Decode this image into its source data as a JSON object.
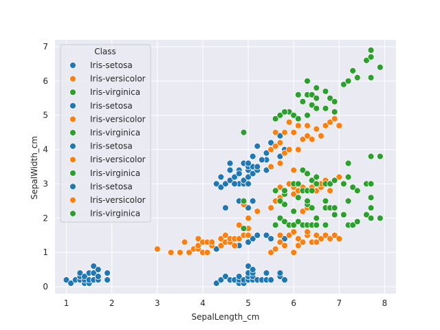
{
  "chart_data": {
    "type": "scatter",
    "xlabel": "SepalLength_cm",
    "ylabel": "SepalWidth_cm",
    "xlim": [
      0.75,
      8.25
    ],
    "ylim": [
      -0.2,
      7.2
    ],
    "xticks": [
      "1",
      "2",
      "3",
      "4",
      "5",
      "6",
      "7",
      "8"
    ],
    "yticks": [
      "0",
      "1",
      "2",
      "3",
      "4",
      "5",
      "6",
      "7"
    ],
    "grid": true,
    "legend": {
      "title": "Class",
      "placement": "top-left",
      "entries": [
        {
          "label": "Iris-setosa",
          "color": "#1f77b4"
        },
        {
          "label": "Iris-versicolor",
          "color": "#ff7f0e"
        },
        {
          "label": "Iris-virginica",
          "color": "#2ca02c"
        },
        {
          "label": "Iris-setosa",
          "color": "#1f77b4"
        },
        {
          "label": "Iris-versicolor",
          "color": "#ff7f0e"
        },
        {
          "label": "Iris-virginica",
          "color": "#2ca02c"
        },
        {
          "label": "Iris-setosa",
          "color": "#1f77b4"
        },
        {
          "label": "Iris-versicolor",
          "color": "#ff7f0e"
        },
        {
          "label": "Iris-virginica",
          "color": "#2ca02c"
        },
        {
          "label": "Iris-setosa",
          "color": "#1f77b4"
        },
        {
          "label": "Iris-versicolor",
          "color": "#ff7f0e"
        },
        {
          "label": "Iris-virginica",
          "color": "#2ca02c"
        }
      ]
    },
    "series": [
      {
        "class": "Iris-setosa",
        "color": "#1f77b4",
        "points": [
          [
            1.0,
            0.2
          ],
          [
            1.1,
            0.1
          ],
          [
            1.2,
            0.2
          ],
          [
            1.3,
            0.2
          ],
          [
            1.3,
            0.3
          ],
          [
            1.3,
            0.4
          ],
          [
            1.4,
            0.1
          ],
          [
            1.4,
            0.2
          ],
          [
            1.4,
            0.3
          ],
          [
            1.5,
            0.1
          ],
          [
            1.5,
            0.2
          ],
          [
            1.5,
            0.4
          ],
          [
            1.6,
            0.2
          ],
          [
            1.6,
            0.4
          ],
          [
            1.6,
            0.6
          ],
          [
            1.7,
            0.2
          ],
          [
            1.7,
            0.3
          ],
          [
            1.7,
            0.5
          ],
          [
            1.9,
            0.2
          ],
          [
            1.9,
            0.4
          ],
          [
            4.3,
            0.1
          ],
          [
            4.4,
            0.2
          ],
          [
            4.5,
            0.3
          ],
          [
            4.6,
            0.2
          ],
          [
            4.7,
            0.2
          ],
          [
            4.8,
            0.1
          ],
          [
            4.8,
            0.2
          ],
          [
            4.8,
            0.3
          ],
          [
            4.9,
            0.1
          ],
          [
            4.9,
            0.2
          ],
          [
            5.0,
            0.2
          ],
          [
            5.0,
            0.3
          ],
          [
            5.0,
            0.4
          ],
          [
            5.0,
            0.6
          ],
          [
            5.1,
            0.2
          ],
          [
            5.1,
            0.3
          ],
          [
            5.1,
            0.4
          ],
          [
            5.1,
            0.5
          ],
          [
            5.2,
            0.2
          ],
          [
            5.3,
            0.2
          ],
          [
            5.4,
            0.2
          ],
          [
            5.4,
            0.4
          ],
          [
            5.5,
            0.2
          ],
          [
            5.7,
            0.3
          ],
          [
            5.7,
            0.4
          ],
          [
            5.8,
            0.2
          ],
          [
            4.3,
            1.1
          ],
          [
            4.8,
            1.2
          ],
          [
            5.0,
            1.3
          ],
          [
            5.1,
            1.4
          ],
          [
            5.2,
            1.5
          ],
          [
            5.4,
            1.5
          ],
          [
            5.5,
            1.4
          ],
          [
            5.7,
            1.5
          ],
          [
            5.8,
            1.4
          ],
          [
            4.5,
            2.3
          ],
          [
            4.8,
            2.5
          ],
          [
            5.0,
            2.3
          ],
          [
            5.1,
            2.5
          ],
          [
            4.3,
            3.0
          ],
          [
            4.4,
            2.9
          ],
          [
            4.4,
            3.2
          ],
          [
            4.5,
            3.0
          ],
          [
            4.6,
            3.1
          ],
          [
            4.6,
            3.4
          ],
          [
            4.7,
            3.2
          ],
          [
            4.8,
            3.0
          ],
          [
            4.8,
            3.4
          ],
          [
            4.9,
            3.0
          ],
          [
            4.9,
            3.1
          ],
          [
            5.0,
            3.0
          ],
          [
            5.0,
            3.2
          ],
          [
            5.0,
            3.4
          ],
          [
            5.0,
            3.5
          ],
          [
            5.1,
            3.3
          ],
          [
            5.1,
            3.5
          ],
          [
            5.1,
            3.8
          ],
          [
            5.2,
            3.4
          ],
          [
            5.2,
            3.5
          ],
          [
            5.3,
            3.7
          ],
          [
            5.4,
            3.4
          ],
          [
            5.4,
            3.7
          ],
          [
            5.4,
            3.9
          ],
          [
            5.5,
            4.2
          ],
          [
            5.7,
            3.8
          ],
          [
            5.7,
            4.4
          ],
          [
            5.8,
            4.0
          ],
          [
            4.6,
            3.6
          ],
          [
            4.7,
            3.0
          ],
          [
            4.8,
            3.3
          ],
          [
            4.9,
            3.6
          ],
          [
            5.0,
            3.6
          ],
          [
            5.2,
            4.1
          ],
          [
            5.3,
            3.7
          ],
          [
            5.5,
            3.5
          ],
          [
            5.7,
            4.4
          ],
          [
            5.8,
            4.0
          ]
        ]
      },
      {
        "class": "Iris-versicolor",
        "color": "#ff7f0e",
        "points": [
          [
            3.0,
            1.1
          ],
          [
            3.3,
            1.0
          ],
          [
            3.5,
            1.0
          ],
          [
            3.6,
            1.3
          ],
          [
            3.7,
            1.0
          ],
          [
            3.8,
            1.1
          ],
          [
            3.9,
            1.1
          ],
          [
            3.9,
            1.2
          ],
          [
            3.9,
            1.4
          ],
          [
            4.0,
            1.0
          ],
          [
            4.0,
            1.3
          ],
          [
            4.1,
            1.0
          ],
          [
            4.1,
            1.3
          ],
          [
            4.2,
            1.2
          ],
          [
            4.2,
            1.3
          ],
          [
            4.4,
            1.2
          ],
          [
            4.4,
            1.4
          ],
          [
            4.5,
            1.3
          ],
          [
            4.5,
            1.5
          ],
          [
            4.6,
            1.3
          ],
          [
            4.6,
            1.4
          ],
          [
            4.7,
            1.2
          ],
          [
            4.7,
            1.4
          ],
          [
            4.8,
            1.4
          ],
          [
            4.8,
            1.8
          ],
          [
            4.9,
            1.5
          ],
          [
            5.0,
            1.5
          ],
          [
            5.0,
            1.7
          ],
          [
            4.9,
            2.4
          ],
          [
            5.0,
            2.0
          ],
          [
            5.2,
            2.2
          ],
          [
            5.5,
            2.3
          ],
          [
            5.6,
            2.5
          ],
          [
            5.6,
            2.8
          ],
          [
            5.7,
            2.6
          ],
          [
            5.7,
            2.9
          ],
          [
            5.8,
            2.7
          ],
          [
            5.9,
            3.0
          ],
          [
            6.0,
            2.2
          ],
          [
            6.0,
            2.7
          ],
          [
            6.0,
            2.9
          ],
          [
            6.0,
            3.4
          ],
          [
            6.1,
            2.8
          ],
          [
            6.1,
            3.0
          ],
          [
            6.2,
            2.2
          ],
          [
            6.2,
            2.9
          ],
          [
            6.3,
            2.3
          ],
          [
            6.3,
            2.5
          ],
          [
            6.3,
            3.3
          ],
          [
            6.4,
            2.9
          ],
          [
            6.5,
            2.8
          ],
          [
            6.6,
            2.9
          ],
          [
            6.6,
            3.0
          ],
          [
            6.7,
            3.0
          ],
          [
            6.7,
            3.1
          ],
          [
            6.8,
            2.8
          ],
          [
            6.9,
            3.1
          ],
          [
            7.0,
            3.2
          ],
          [
            5.5,
            3.5
          ],
          [
            5.5,
            4.0
          ],
          [
            5.6,
            4.1
          ],
          [
            5.6,
            4.5
          ],
          [
            5.7,
            3.6
          ],
          [
            5.7,
            4.2
          ],
          [
            5.8,
            3.9
          ],
          [
            5.8,
            4.5
          ],
          [
            5.9,
            4.0
          ],
          [
            5.9,
            4.8
          ],
          [
            6.0,
            4.5
          ],
          [
            6.1,
            4.0
          ],
          [
            6.1,
            4.7
          ],
          [
            6.2,
            4.3
          ],
          [
            6.3,
            4.4
          ],
          [
            6.3,
            4.7
          ],
          [
            6.4,
            4.3
          ],
          [
            6.5,
            4.6
          ],
          [
            6.6,
            4.4
          ],
          [
            6.7,
            4.7
          ],
          [
            6.8,
            4.8
          ],
          [
            6.9,
            4.9
          ],
          [
            7.0,
            4.7
          ],
          [
            5.5,
            1.0
          ],
          [
            5.6,
            1.1
          ],
          [
            5.7,
            1.3
          ],
          [
            5.8,
            1.2
          ],
          [
            5.9,
            1.5
          ],
          [
            6.0,
            1.0
          ],
          [
            6.0,
            1.6
          ],
          [
            6.1,
            1.2
          ],
          [
            6.2,
            1.3
          ],
          [
            6.3,
            1.5
          ],
          [
            6.4,
            1.3
          ],
          [
            6.5,
            1.5
          ],
          [
            6.6,
            1.4
          ],
          [
            6.7,
            1.5
          ],
          [
            6.8,
            1.4
          ],
          [
            6.9,
            1.5
          ],
          [
            7.0,
            1.4
          ],
          [
            5.7,
            1.5
          ],
          [
            6.1,
            1.4
          ],
          [
            6.3,
            1.6
          ],
          [
            6.5,
            1.3
          ]
        ]
      },
      {
        "class": "Iris-virginica",
        "color": "#2ca02c",
        "points": [
          [
            4.9,
            1.7
          ],
          [
            5.6,
            1.8
          ],
          [
            5.7,
            2.0
          ],
          [
            5.8,
            1.9
          ],
          [
            5.8,
            2.4
          ],
          [
            5.9,
            1.8
          ],
          [
            6.0,
            1.8
          ],
          [
            6.1,
            1.9
          ],
          [
            6.2,
            1.8
          ],
          [
            6.3,
            1.8
          ],
          [
            6.3,
            2.4
          ],
          [
            6.4,
            1.8
          ],
          [
            6.4,
            2.3
          ],
          [
            6.5,
            1.8
          ],
          [
            6.5,
            2.0
          ],
          [
            6.7,
            1.8
          ],
          [
            6.7,
            2.3
          ],
          [
            6.8,
            2.3
          ],
          [
            6.9,
            2.1
          ],
          [
            6.9,
            2.3
          ],
          [
            7.1,
            2.1
          ],
          [
            7.2,
            1.8
          ],
          [
            7.2,
            2.5
          ],
          [
            7.3,
            1.8
          ],
          [
            7.4,
            1.9
          ],
          [
            7.6,
            2.1
          ],
          [
            7.7,
            2.0
          ],
          [
            7.7,
            2.3
          ],
          [
            7.9,
            2.0
          ],
          [
            4.9,
            2.5
          ],
          [
            5.6,
            2.8
          ],
          [
            5.7,
            2.5
          ],
          [
            5.8,
            2.7
          ],
          [
            5.8,
            2.8
          ],
          [
            6.0,
            2.2
          ],
          [
            6.0,
            3.0
          ],
          [
            6.1,
            2.6
          ],
          [
            6.1,
            3.0
          ],
          [
            6.2,
            2.8
          ],
          [
            6.2,
            3.4
          ],
          [
            6.3,
            2.5
          ],
          [
            6.3,
            2.8
          ],
          [
            6.3,
            3.3
          ],
          [
            6.4,
            2.8
          ],
          [
            6.4,
            3.1
          ],
          [
            6.5,
            3.0
          ],
          [
            6.5,
            3.2
          ],
          [
            6.7,
            2.5
          ],
          [
            6.7,
            3.0
          ],
          [
            6.8,
            3.0
          ],
          [
            6.9,
            3.1
          ],
          [
            7.1,
            3.0
          ],
          [
            7.2,
            3.2
          ],
          [
            7.2,
            3.6
          ],
          [
            7.3,
            2.9
          ],
          [
            7.4,
            2.8
          ],
          [
            7.6,
            3.0
          ],
          [
            7.7,
            2.6
          ],
          [
            7.7,
            3.0
          ],
          [
            7.7,
            3.8
          ],
          [
            7.9,
            3.8
          ],
          [
            4.9,
            4.5
          ],
          [
            5.6,
            4.9
          ],
          [
            5.7,
            5.0
          ],
          [
            5.8,
            5.1
          ],
          [
            5.9,
            5.1
          ],
          [
            6.0,
            5.0
          ],
          [
            6.1,
            4.9
          ],
          [
            6.1,
            5.6
          ],
          [
            6.2,
            5.4
          ],
          [
            6.3,
            5.0
          ],
          [
            6.3,
            5.6
          ],
          [
            6.4,
            5.3
          ],
          [
            6.4,
            5.6
          ],
          [
            6.5,
            5.2
          ],
          [
            6.5,
            5.8
          ],
          [
            6.7,
            5.2
          ],
          [
            6.7,
            5.7
          ],
          [
            6.8,
            5.5
          ],
          [
            6.9,
            5.4
          ],
          [
            7.1,
            5.9
          ],
          [
            7.2,
            6.0
          ],
          [
            7.3,
            6.3
          ],
          [
            7.4,
            6.1
          ],
          [
            7.6,
            6.6
          ],
          [
            7.7,
            6.7
          ],
          [
            7.7,
            6.9
          ],
          [
            7.7,
            6.1
          ],
          [
            7.9,
            6.4
          ],
          [
            6.9,
            5.1
          ],
          [
            6.3,
            6.0
          ],
          [
            6.5,
            5.5
          ],
          [
            5.8,
            5.1
          ]
        ]
      }
    ]
  }
}
